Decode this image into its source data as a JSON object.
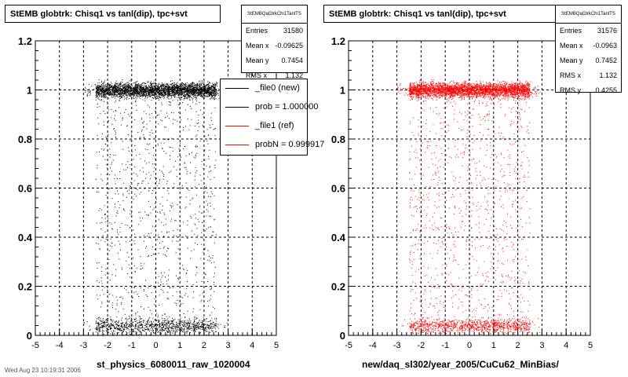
{
  "footer": "Wed Aug 23 10:19:31 2006",
  "chart_data": [
    {
      "type": "scatter",
      "title": "StEMB globtrk: Chisq1 vs tanl(dip), tpc+svt",
      "xlabel": "st_physics_6080011_raw_1020004",
      "ylabel": "",
      "xlim": [
        -5,
        5
      ],
      "ylim": [
        0,
        1.2
      ],
      "x_ticks": [
        "-5",
        "-4",
        "-3",
        "-2",
        "-1",
        "0",
        "1",
        "2",
        "3",
        "4",
        "5"
      ],
      "y_ticks": [
        "0",
        "0.2",
        "0.4",
        "0.6",
        "0.8",
        "1",
        "1.2"
      ],
      "grid": true,
      "point_color": "#000000",
      "series": [
        {
          "name": "_file0 (new)",
          "color": "#000000"
        },
        {
          "name": "_file1 (ref)",
          "color": "#ff0000"
        }
      ],
      "density": {
        "x_core": [
          -2.5,
          2.5
        ],
        "x_tails": [
          -3.0,
          3.0
        ],
        "bands": [
          {
            "y_center": 1.0,
            "y_halfwidth": 0.03,
            "fraction": 0.62
          },
          {
            "y_center": 0.04,
            "y_halfwidth": 0.03,
            "fraction": 0.2
          }
        ],
        "sparse_fraction": 0.18
      },
      "stats": {
        "name": "StEMBQaGlrkChi1TanlTS",
        "rows": [
          {
            "label": "Entries",
            "value": "31580"
          },
          {
            "label": "Mean x",
            "value": "-0.09625"
          },
          {
            "label": "Mean y",
            "value": "0.7454"
          },
          {
            "label": "RMS x",
            "value": "1.132"
          }
        ]
      },
      "legend": [
        {
          "label": "_file0 (new)",
          "color": "#000000"
        },
        {
          "label": "prob = 1.000000",
          "color": "#000000"
        },
        {
          "label": "_file1 (ref)",
          "color": "#ff0000"
        },
        {
          "label": "probN = 0.999917",
          "color": "#ff0000"
        }
      ]
    },
    {
      "type": "scatter",
      "title": "StEMB globtrk: Chisq1 vs tanl(dip), tpc+svt",
      "xlabel": "new/daq_sl302/year_2005/CuCu62_MinBias/",
      "ylabel": "",
      "xlim": [
        -5,
        5
      ],
      "ylim": [
        0,
        1.2
      ],
      "x_ticks": [
        "-5",
        "-4",
        "-3",
        "-2",
        "-1",
        "0",
        "1",
        "2",
        "3",
        "4",
        "5"
      ],
      "y_ticks": [
        "0",
        "0.2",
        "0.4",
        "0.6",
        "0.8",
        "1",
        "1.2"
      ],
      "grid": true,
      "point_color": "#ff0000",
      "density": {
        "x_core": [
          -2.5,
          2.5
        ],
        "x_tails": [
          -3.0,
          3.0
        ],
        "bands": [
          {
            "y_center": 1.0,
            "y_halfwidth": 0.03,
            "fraction": 0.62
          },
          {
            "y_center": 0.04,
            "y_halfwidth": 0.03,
            "fraction": 0.2
          }
        ],
        "sparse_fraction": 0.18
      },
      "stats": {
        "name": "StEMBQaGlrkChi1TanlTS",
        "rows": [
          {
            "label": "Entries",
            "value": "31576"
          },
          {
            "label": "Mean x",
            "value": "-0.0963"
          },
          {
            "label": "Mean y",
            "value": "0.7452"
          },
          {
            "label": "RMS x",
            "value": "1.132"
          },
          {
            "label": "RMS y",
            "value": "0.4255"
          }
        ]
      }
    }
  ]
}
